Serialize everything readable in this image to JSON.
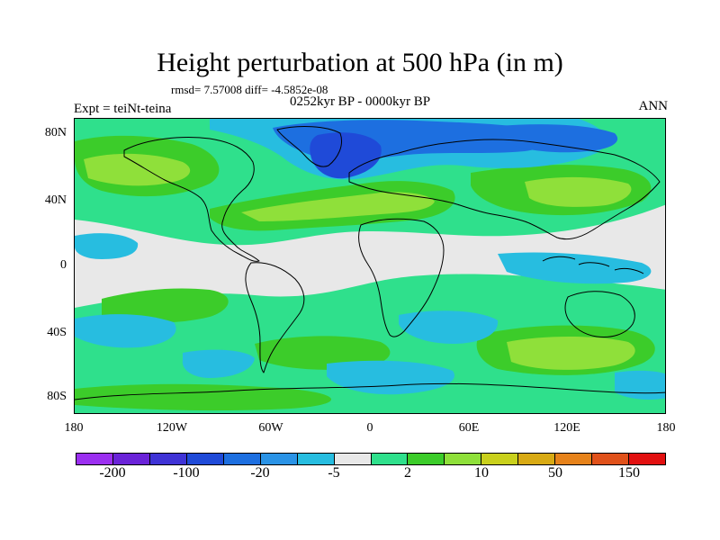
{
  "title": "Height perturbation at 500 hPa (in m)",
  "stats": "rmsd= 7.57008 diff= -4.5852e-08",
  "period": "0252kyr BP - 0000kyr BP",
  "experiment": "Expt = teiNt-teina",
  "season": "ANN",
  "axes": {
    "lat_labels": [
      "80N",
      "40N",
      "0",
      "40S",
      "80S"
    ],
    "lon_labels": [
      "180",
      "120W",
      "60W",
      "0",
      "60E",
      "120E",
      "180"
    ]
  },
  "colorbar": {
    "colors": [
      "#9b2ff0",
      "#6a23d8",
      "#3f33d6",
      "#1f4ad8",
      "#1d6fe0",
      "#2a93e6",
      "#27bde0",
      "#e8e8e8",
      "#2fe08c",
      "#3ccc2a",
      "#8fe03a",
      "#c9d01c",
      "#d8aa14",
      "#e6821a",
      "#e0511a",
      "#e21010"
    ],
    "labels": [
      "-200",
      "-100",
      "-20",
      "-5",
      "2",
      "10",
      "50",
      "150"
    ]
  },
  "fill_colors": {
    "neutral": "#e8e8e8",
    "light_blue": "#27bde0",
    "blue": "#1d6fe0",
    "dark_blue": "#1f4ad8",
    "teal": "#2fe08c",
    "green": "#3ccc2a",
    "lime": "#8fe03a",
    "olive": "#c9d01c"
  }
}
